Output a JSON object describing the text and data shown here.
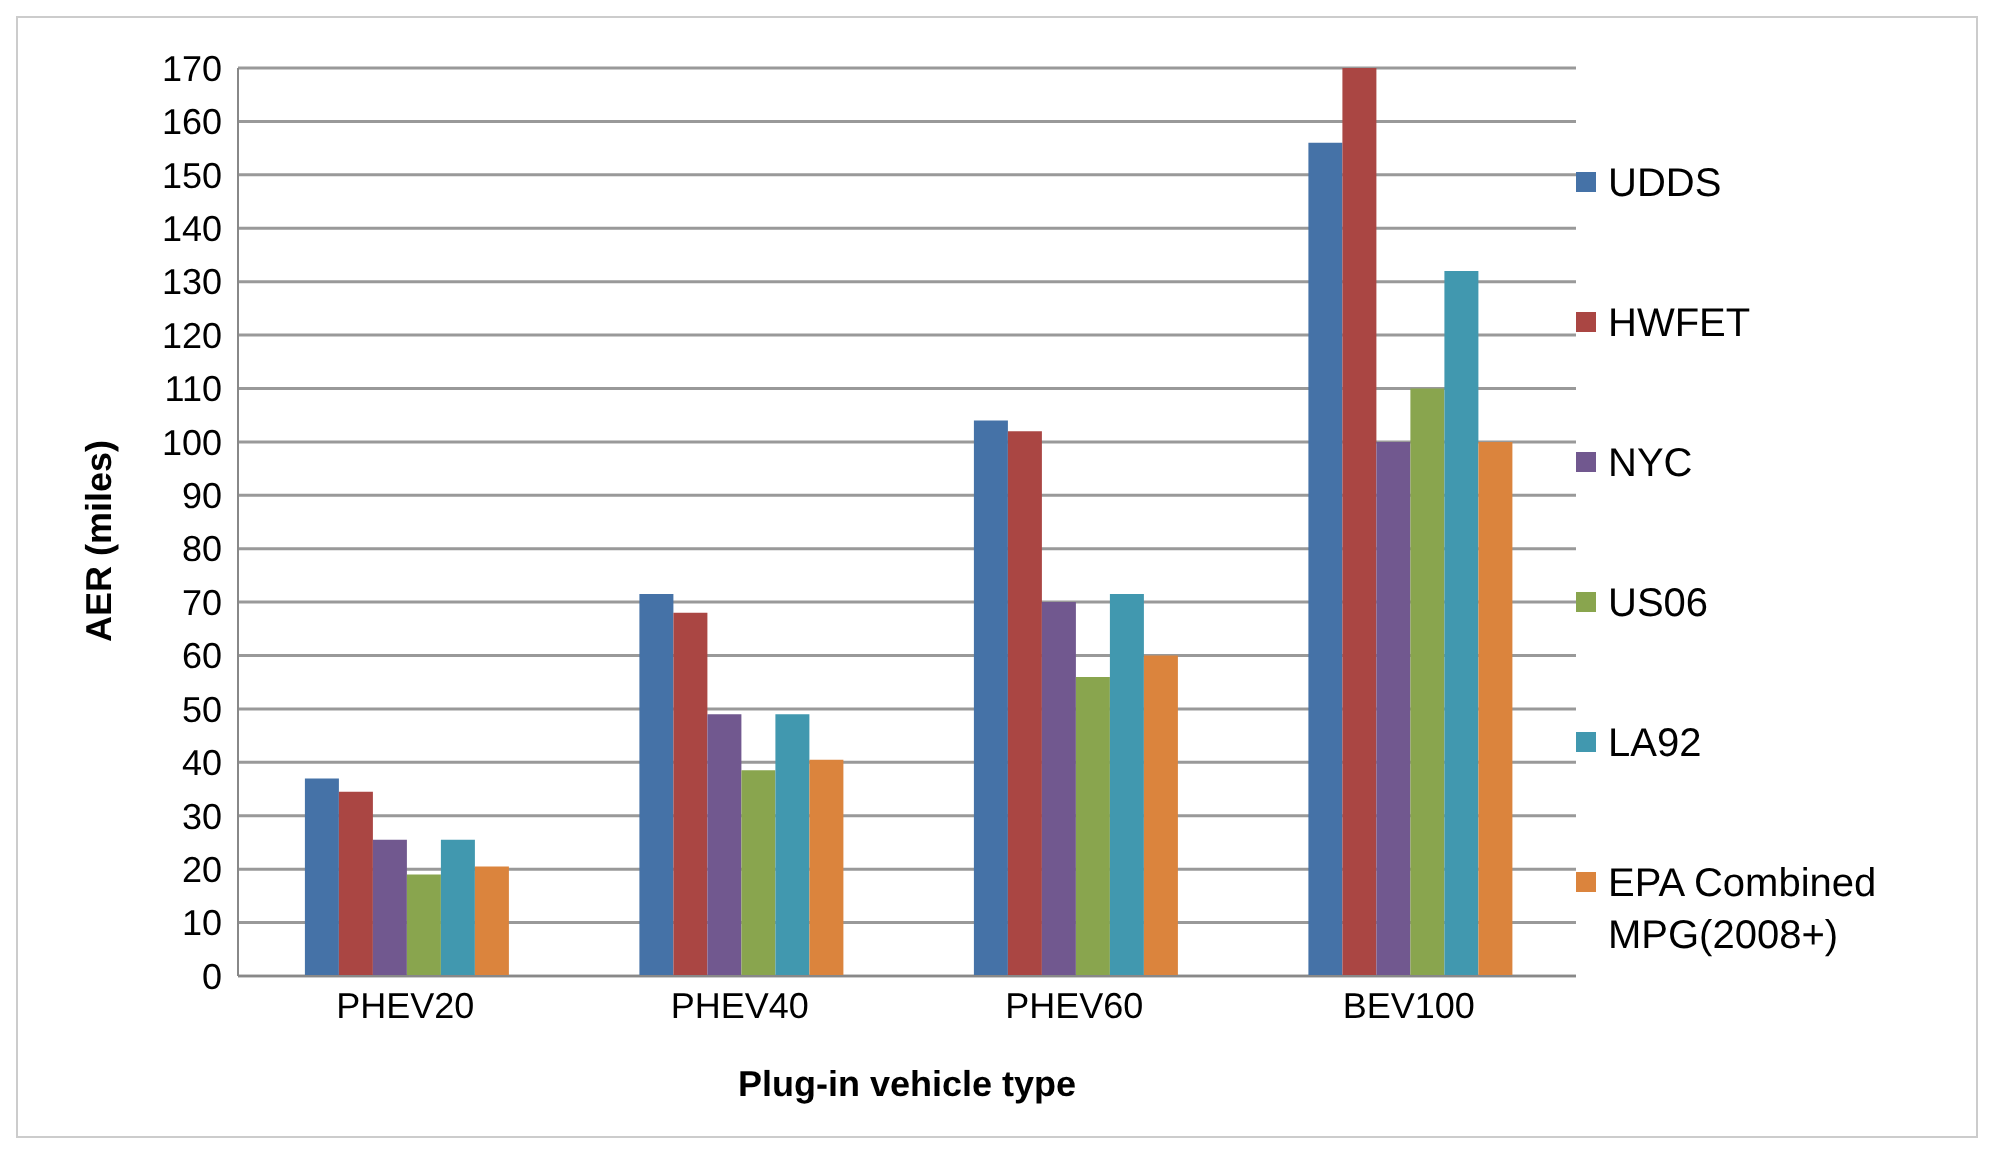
{
  "chart_data": {
    "type": "bar",
    "xlabel": "Plug-in vehicle type",
    "ylabel": "AER (miles)",
    "categories": [
      "PHEV20",
      "PHEV40",
      "PHEV60",
      "BEV100"
    ],
    "series": [
      {
        "name": "UDDS",
        "color": "#4572a7",
        "values": [
          37,
          71.5,
          104,
          156
        ]
      },
      {
        "name": "HWFET",
        "color": "#aa4643",
        "values": [
          34.5,
          68,
          102,
          170
        ]
      },
      {
        "name": "NYC",
        "color": "#71588f",
        "values": [
          25.5,
          49,
          70,
          100
        ]
      },
      {
        "name": "US06",
        "color": "#89a54e",
        "values": [
          19,
          38.5,
          56,
          110
        ]
      },
      {
        "name": "LA92",
        "color": "#4198af",
        "values": [
          25.5,
          49,
          71.5,
          132
        ]
      },
      {
        "name": "EPA Combined MPG(2008+)",
        "color": "#db843d",
        "values": [
          20.5,
          40.5,
          60,
          100
        ]
      }
    ],
    "ylim": [
      0,
      170
    ],
    "yticks": [
      0,
      10,
      20,
      30,
      40,
      50,
      60,
      70,
      80,
      90,
      100,
      110,
      120,
      130,
      140,
      150,
      160,
      170
    ],
    "grid": "y",
    "legend": "right"
  }
}
